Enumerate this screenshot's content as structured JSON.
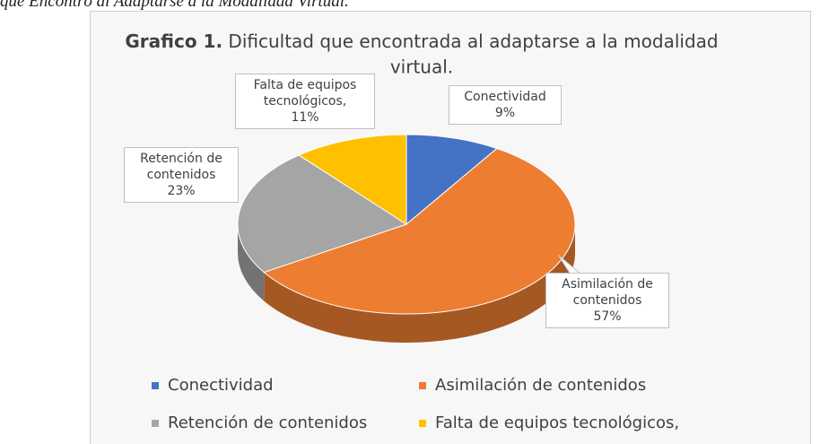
{
  "caption": "que Encontró al Adaptarse a la Modalidad Virtual.",
  "chart_data": {
    "type": "pie3d",
    "title": [
      "Grafico 1.",
      "Dificultad que encontrada al adaptarse a la modalidad virtual."
    ],
    "categories": [
      "Conectividad",
      "Asimilación de contenidos",
      "Retención de contenidos",
      "Falta de equipos tecnológicos,"
    ],
    "values": [
      9,
      57,
      23,
      11
    ],
    "value_labels": [
      "9%",
      "57%",
      "23%",
      "11%"
    ],
    "colors": [
      "#4472c4",
      "#ed7d31",
      "#a5a5a5",
      "#ffc000"
    ],
    "legend": "bottom"
  }
}
